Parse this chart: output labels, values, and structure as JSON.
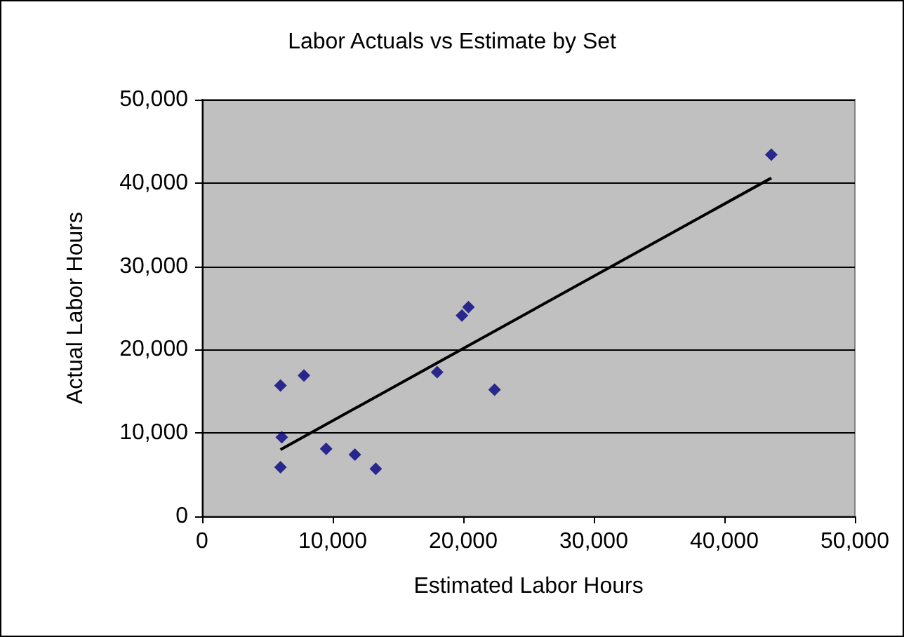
{
  "chart_data": {
    "type": "scatter",
    "title": "Labor Actuals vs Estimate by Set",
    "xlabel": "Estimated Labor Hours",
    "ylabel": "Actual Labor Hours",
    "xlim": [
      0,
      50000
    ],
    "xticks": [
      0,
      {
        "value": 10000,
        "label": "10,000"
      },
      {
        "value": 20000,
        "label": "20,000"
      },
      {
        "value": 30000,
        "label": "30,000"
      },
      {
        "value": 40000,
        "label": "40,000"
      },
      {
        "value": 50000,
        "label": "50,000"
      }
    ],
    "ylim": [
      0,
      50000
    ],
    "yticks": [
      0,
      {
        "value": 10000,
        "label": "10,000"
      },
      {
        "value": 20000,
        "label": "20,000"
      },
      {
        "value": 30000,
        "label": "30,000"
      },
      {
        "value": 40000,
        "label": "40,000"
      },
      {
        "value": 50000,
        "label": "50,000"
      }
    ],
    "grid": "y",
    "marker": "diamond",
    "series": [
      {
        "color": "#000080",
        "x": [
          6000,
          7800,
          6100,
          6000,
          9500,
          11700,
          13300,
          18000,
          19900,
          20400,
          22400,
          43600
        ],
        "values": [
          15700,
          16900,
          9500,
          5900,
          8100,
          7400,
          5700,
          17300,
          24100,
          25100,
          15200,
          43400
        ]
      },
      {
        "type": "line",
        "color": "#000000",
        "marker": "none",
        "x": [
          6000,
          43600
        ],
        "values": [
          8000,
          40600
        ]
      }
    ]
  }
}
